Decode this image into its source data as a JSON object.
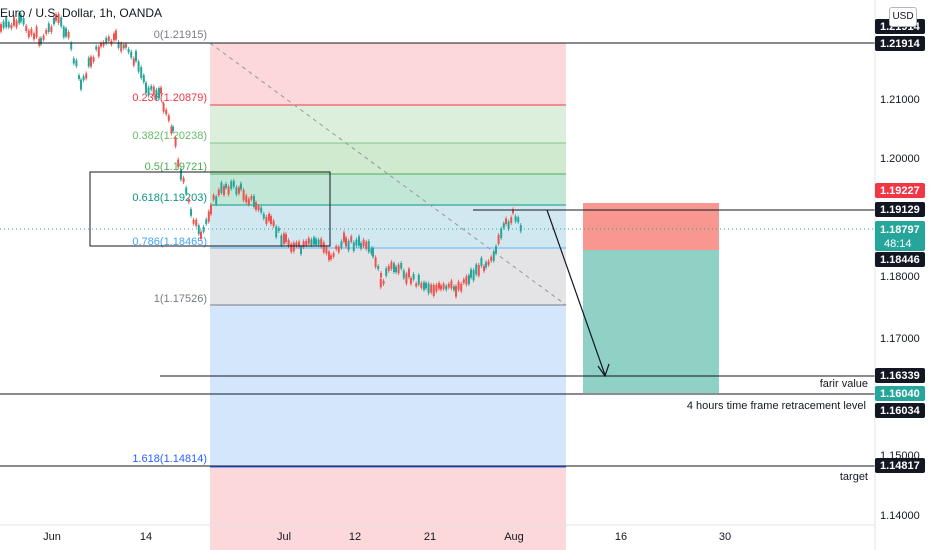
{
  "header": {
    "title": "Euro / U.S. Dollar, 1h, OANDA",
    "currency_button": "USD"
  },
  "price_axis": {
    "ticks": [
      "1.21000",
      "1.20000",
      "1.18000",
      "1.17000",
      "1.15000",
      "1.14000"
    ],
    "labels": [
      {
        "text": "1.21914",
        "bg": "#131722",
        "fg": "#ffffff"
      },
      {
        "text": "1.21914",
        "bg": "#131722",
        "fg": "#ffffff"
      },
      {
        "text": "1.19227",
        "bg": "#f23645",
        "fg": "#ffffff"
      },
      {
        "text": "1.19129",
        "bg": "#131722",
        "fg": "#ffffff"
      },
      {
        "text": "1.18797",
        "bg": "#26a69a",
        "fg": "#ffffff"
      },
      {
        "text": "48:14",
        "bg": "#26a69a",
        "fg": "#ffffff"
      },
      {
        "text": "1.18446",
        "bg": "#131722",
        "fg": "#ffffff"
      },
      {
        "text": "1.16339",
        "bg": "#131722",
        "fg": "#ffffff"
      },
      {
        "text": "1.16040",
        "bg": "#26a69a",
        "fg": "#ffffff"
      },
      {
        "text": "1.16034",
        "bg": "#131722",
        "fg": "#ffffff"
      },
      {
        "text": "1.14817",
        "bg": "#131722",
        "fg": "#ffffff"
      }
    ]
  },
  "time_axis": {
    "ticks": [
      "Jun",
      "14",
      "Jul",
      "12",
      "21",
      "Aug",
      "16",
      "30"
    ]
  },
  "fib": {
    "levels": [
      {
        "text": "0(1.21915)",
        "color": "#787b86"
      },
      {
        "text": "0.236(1.20879)",
        "color": "#f23645"
      },
      {
        "text": "0.382(1.20238)",
        "color": "#81c784"
      },
      {
        "text": "0.5(1.19721)",
        "color": "#4caf50"
      },
      {
        "text": "0.618(1.19203)",
        "color": "#089981"
      },
      {
        "text": "0.786(1.18465)",
        "color": "#64b5f6"
      },
      {
        "text": "1(1.17526)",
        "color": "#787b86"
      },
      {
        "text": "1.618(1.14814)",
        "color": "#2962ff"
      }
    ]
  },
  "annotations": {
    "fair_value": "farir value",
    "retracement": "4 hours time frame retracement level",
    "target": "target"
  },
  "icons": {
    "arrow": "arrow-down-right-icon"
  }
}
